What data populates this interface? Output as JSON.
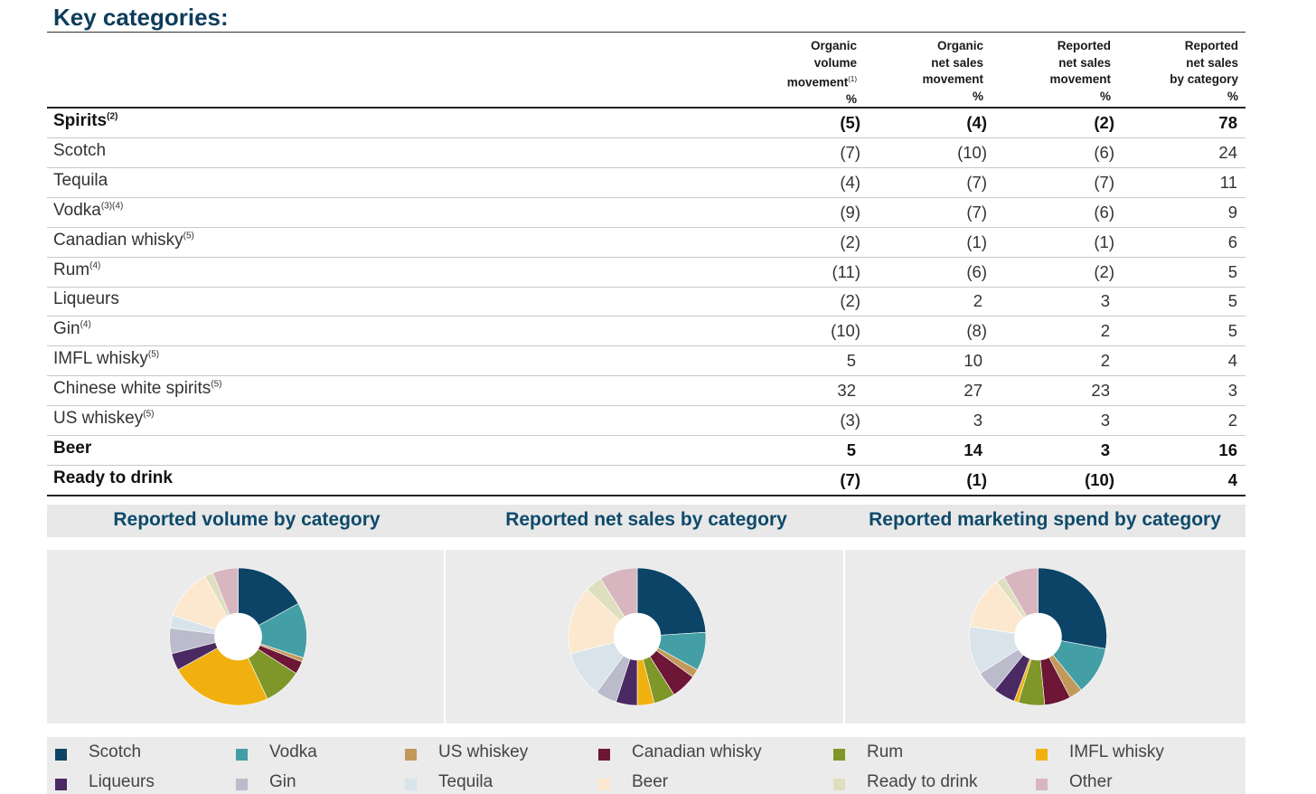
{
  "title": "Key categories:",
  "headers": [
    {
      "l1": "Organic",
      "l2": "volume",
      "l3": "movement",
      "sup": "(1)",
      "l4": "%"
    },
    {
      "l1": "Organic",
      "l2": "net sales",
      "l3": "movement",
      "sup": "",
      "l4": "%"
    },
    {
      "l1": "Reported",
      "l2": "net sales",
      "l3": "movement",
      "sup": "",
      "l4": "%"
    },
    {
      "l1": "Reported",
      "l2": "net sales",
      "l3": "by category",
      "sup": "",
      "l4": "%"
    }
  ],
  "rows": [
    {
      "label": "Spirits",
      "sup": "(2)",
      "bold": true,
      "v": [
        "(5)",
        "(4)",
        "(2)",
        "78"
      ]
    },
    {
      "label": "Scotch",
      "sup": "",
      "bold": false,
      "v": [
        "(7)",
        "(10)",
        "(6)",
        "24"
      ]
    },
    {
      "label": "Tequila",
      "sup": "",
      "bold": false,
      "v": [
        "(4)",
        "(7)",
        "(7)",
        "11"
      ]
    },
    {
      "label": "Vodka",
      "sup": "(3)(4)",
      "bold": false,
      "v": [
        "(9)",
        "(7)",
        "(6)",
        "9"
      ]
    },
    {
      "label": "Canadian whisky",
      "sup": "(5)",
      "bold": false,
      "v": [
        "(2)",
        "(1)",
        "(1)",
        "6"
      ]
    },
    {
      "label": "Rum",
      "sup": "(4)",
      "bold": false,
      "v": [
        "(11)",
        "(6)",
        "(2)",
        "5"
      ]
    },
    {
      "label": "Liqueurs",
      "sup": "",
      "bold": false,
      "v": [
        "(2)",
        "2",
        "3",
        "5"
      ]
    },
    {
      "label": "Gin",
      "sup": "(4)",
      "bold": false,
      "v": [
        "(10)",
        "(8)",
        "2",
        "5"
      ]
    },
    {
      "label": "IMFL whisky",
      "sup": "(5)",
      "bold": false,
      "v": [
        "5",
        "10",
        "2",
        "4"
      ]
    },
    {
      "label": "Chinese white spirits",
      "sup": "(5)",
      "bold": false,
      "v": [
        "32",
        "27",
        "23",
        "3"
      ]
    },
    {
      "label": "US whiskey",
      "sup": "(5)",
      "bold": false,
      "v": [
        "(3)",
        "3",
        "3",
        "2"
      ]
    },
    {
      "label": "Beer",
      "sup": "",
      "bold": true,
      "v": [
        "5",
        "14",
        "3",
        "16"
      ]
    },
    {
      "label": "Ready to drink",
      "sup": "",
      "bold": true,
      "v": [
        "(7)",
        "(1)",
        "(10)",
        "4"
      ]
    }
  ],
  "chart_data": [
    {
      "type": "pie",
      "title": "Reported volume by category",
      "categories": [
        "Scotch",
        "Vodka",
        "US whiskey",
        "Canadian whisky",
        "Rum",
        "IMFL whisky",
        "Liqueurs",
        "Gin",
        "Tequila",
        "Beer",
        "Ready to drink",
        "Other"
      ],
      "values": [
        17,
        13,
        1,
        3,
        9,
        24,
        4,
        6,
        3,
        12,
        2,
        6
      ]
    },
    {
      "type": "pie",
      "title": "Reported net sales by category",
      "categories": [
        "Scotch",
        "Vodka",
        "US whiskey",
        "Canadian whisky",
        "Rum",
        "IMFL whisky",
        "Liqueurs",
        "Gin",
        "Tequila",
        "Beer",
        "Ready to drink",
        "Other"
      ],
      "values": [
        24,
        9,
        2,
        6,
        5,
        4,
        5,
        5,
        11,
        16,
        4,
        9
      ]
    },
    {
      "type": "pie",
      "title": "Reported marketing spend by category",
      "categories": [
        "Scotch",
        "Vodka",
        "US whiskey",
        "Canadian whisky",
        "Rum",
        "IMFL whisky",
        "Liqueurs",
        "Gin",
        "Tequila",
        "Beer",
        "Ready to drink",
        "Other"
      ],
      "values": [
        27,
        11,
        3,
        6,
        6,
        1,
        5,
        5,
        11,
        12,
        2,
        8
      ]
    }
  ],
  "legend": [
    "Scotch",
    "Vodka",
    "US whiskey",
    "Canadian whisky",
    "Rum",
    "IMFL whisky",
    "Liqueurs",
    "Gin",
    "Tequila",
    "Beer",
    "Ready to drink",
    "Other"
  ],
  "colors": [
    "#0b4466",
    "#449ea6",
    "#c19a5b",
    "#6e1636",
    "#7f9628",
    "#f0b010",
    "#4b2a63",
    "#bbbbcc",
    "#d8e3ea",
    "#fbe8cf",
    "#dfdfc0",
    "#d8b6c0"
  ]
}
